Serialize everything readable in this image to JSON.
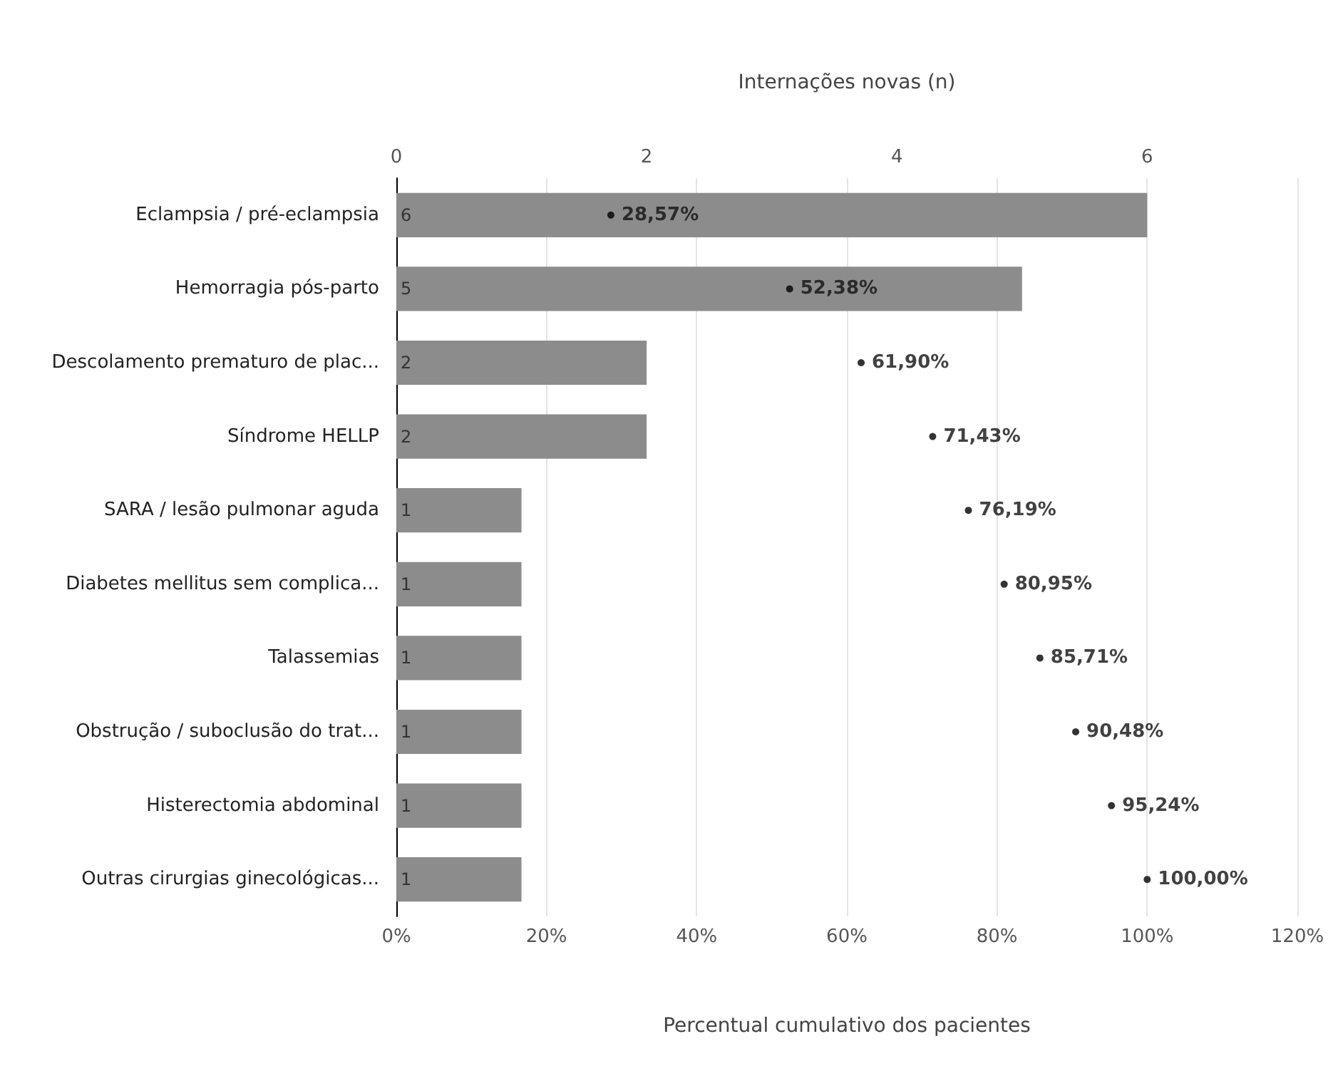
{
  "chart_data": {
    "type": "bar",
    "orientation": "horizontal",
    "x2label": "Internações novas (n)",
    "xlabel": "Percentual cumulativo dos pacientes",
    "categories": [
      "Eclampsia / pré-eclampsia",
      "Hemorragia pós-parto",
      "Descolamento prematuro de plac...",
      "Síndrome HELLP",
      "SARA / lesão pulmonar aguda",
      "Diabetes mellitus sem complica...",
      "Talassemias",
      "Obstrução / suboclusão do trat...",
      "Histerectomia abdominal",
      "Outras cirurgias ginecológicas..."
    ],
    "series": [
      {
        "axis": "x2",
        "color": "#8c8c8c",
        "values": [
          6,
          5,
          2,
          2,
          1,
          1,
          1,
          1,
          1,
          1
        ],
        "value_labels": [
          "6",
          "5",
          "2",
          "2",
          "1",
          "1",
          "1",
          "1",
          "1",
          "1"
        ]
      },
      {
        "type": "scatter",
        "color": "#000000",
        "values": [
          28.57,
          52.38,
          61.9,
          71.43,
          76.19,
          80.95,
          85.71,
          90.48,
          95.24,
          100.0
        ],
        "value_labels": [
          "28,57%",
          "52,38%",
          "61,90%",
          "71,43%",
          "76,19%",
          "80,95%",
          "85,71%",
          "90,48%",
          "95,24%",
          "100,00%"
        ]
      }
    ],
    "xlim": [
      0,
      120
    ],
    "xticks": [
      {
        "value": 0,
        "label": "0%"
      },
      {
        "value": 20,
        "label": "20%"
      },
      {
        "value": 40,
        "label": "40%"
      },
      {
        "value": 60,
        "label": "60%"
      },
      {
        "value": 80,
        "label": "80%"
      },
      {
        "value": 100,
        "label": "100%"
      },
      {
        "value": 120,
        "label": "120%"
      }
    ],
    "x2lim": [
      0,
      7.2
    ],
    "x2ticks": [
      0,
      2,
      4,
      6
    ],
    "grid": "x",
    "marker": "circle"
  }
}
